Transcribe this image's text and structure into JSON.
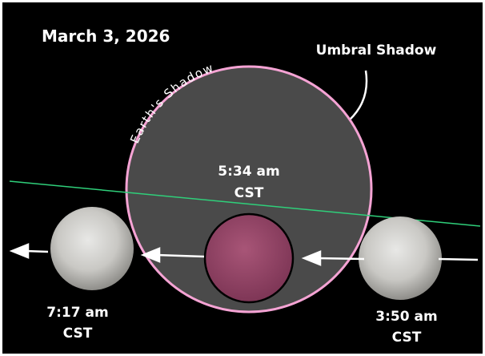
{
  "title": "March 3, 2026",
  "umbra_label": "Umbral Shadow",
  "shadow_label": "Earth's Shadow",
  "events": [
    {
      "time": "5:34 am",
      "zone": "CST"
    },
    {
      "time": "7:17 am",
      "zone": "CST"
    },
    {
      "time": "3:50 am",
      "zone": "CST"
    }
  ]
}
